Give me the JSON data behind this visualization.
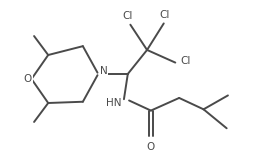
{
  "bg_color": "#ffffff",
  "line_color": "#4a4a4a",
  "text_color": "#4a4a4a",
  "line_width": 1.4,
  "font_size": 7.5,
  "fig_width": 2.71,
  "fig_height": 1.55,
  "dpi": 100,
  "xlim": [
    0,
    10.5
  ],
  "ylim": [
    0,
    6.0
  ]
}
